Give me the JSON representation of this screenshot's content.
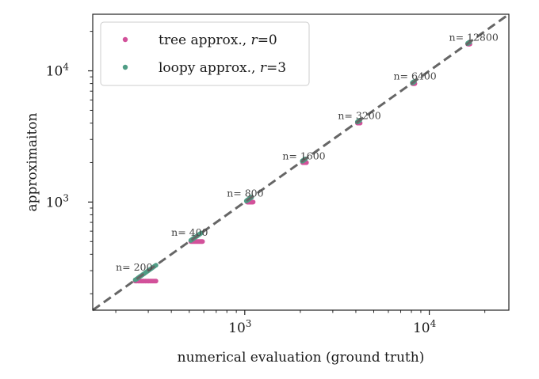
{
  "chart_data": {
    "type": "scatter",
    "title": "",
    "xlabel": "numerical evaluation (ground truth)",
    "ylabel": "approximaiton",
    "xscale": "log",
    "yscale": "log",
    "xlim": [
      150,
      27000
    ],
    "ylim": [
      150,
      27000
    ],
    "major_ticks": [
      {
        "value": 1000,
        "base": "10",
        "exp": "3"
      },
      {
        "value": 10000,
        "base": "10",
        "exp": "4"
      }
    ],
    "minor_ticks": [
      200,
      300,
      400,
      500,
      600,
      700,
      800,
      900,
      2000,
      3000,
      4000,
      5000,
      6000,
      7000,
      8000,
      9000,
      20000
    ],
    "grid": false,
    "legend_position": "top-left",
    "reference_line": {
      "style": "dashed",
      "color": "#666666",
      "from": [
        150,
        150
      ],
      "to": [
        27000,
        27000
      ]
    },
    "series": [
      {
        "name_text": "tree approx., ",
        "name_var": "r",
        "name_value": "=0",
        "color": "#d2519a",
        "clusters": [
          {
            "n": 200,
            "y": 250,
            "x_range": [
              255,
              330
            ]
          },
          {
            "n": 400,
            "y": 500,
            "x_range": [
              510,
              590
            ]
          },
          {
            "n": 800,
            "y": 1000,
            "x_range": [
              1030,
              1110
            ]
          },
          {
            "n": 1600,
            "y": 2000,
            "x_range": [
              2060,
              2160
            ]
          },
          {
            "n": 3200,
            "y": 4000,
            "x_range": [
              4080,
              4220
            ]
          },
          {
            "n": 6400,
            "y": 8000,
            "x_range": [
              8120,
              8350
            ]
          },
          {
            "n": 12800,
            "y": 16000,
            "x_range": [
              16150,
              16600
            ]
          }
        ]
      },
      {
        "name_text": "loopy approx., ",
        "name_var": "r",
        "name_value": "=3",
        "color": "#4f9d85",
        "clusters": [
          {
            "n": 200,
            "x_range": [
              255,
              330
            ]
          },
          {
            "n": 400,
            "x_range": [
              510,
              580
            ]
          },
          {
            "n": 800,
            "x_range": [
              1020,
              1090
            ]
          },
          {
            "n": 1600,
            "x_range": [
              2050,
              2130
            ]
          },
          {
            "n": 3200,
            "x_range": [
              4080,
              4200
            ]
          },
          {
            "n": 6400,
            "x_range": [
              8100,
              8300
            ]
          },
          {
            "n": 12800,
            "x_range": [
              16150,
              16550
            ]
          }
        ]
      }
    ],
    "annotations": [
      {
        "text": "n= 200",
        "x": 200,
        "y": 300
      },
      {
        "text": "n= 400",
        "x": 400,
        "y": 555
      },
      {
        "text": "n= 800",
        "x": 800,
        "y": 1100
      },
      {
        "text": "n= 1600",
        "x": 1600,
        "y": 2120
      },
      {
        "text": "n= 3200",
        "x": 3200,
        "y": 4300
      },
      {
        "text": "n= 6400",
        "x": 6400,
        "y": 8600
      },
      {
        "text": "n= 12800",
        "x": 12800,
        "y": 17000
      }
    ]
  }
}
